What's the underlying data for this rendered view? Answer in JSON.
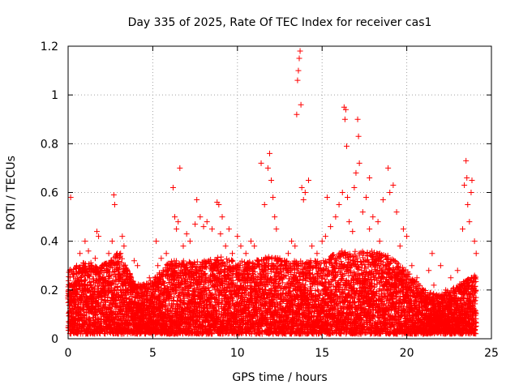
{
  "chart_data": {
    "type": "scatter",
    "title": "Day 335 of 2025, Rate Of TEC Index for receiver cas1",
    "xlabel": "GPS time / hours",
    "ylabel": "ROTI / TECUs",
    "xlim": [
      0,
      25
    ],
    "ylim": [
      0,
      1.2
    ],
    "xticks": [
      0,
      5,
      10,
      15,
      20,
      25
    ],
    "xtick_labels": [
      "0",
      "5",
      "10",
      "15",
      "20",
      "25"
    ],
    "yticks": [
      0,
      0.2,
      0.4,
      0.6,
      0.8,
      1,
      1.2
    ],
    "ytick_labels": [
      "0",
      "0.2",
      "0.4",
      "0.6",
      "0.8",
      "1",
      "1.2"
    ],
    "grid": true,
    "marker": "+",
    "color": "#ff0000",
    "series": [
      {
        "name": "ROTI",
        "points": [
          [
            0.1,
            0.28
          ],
          [
            0.15,
            0.58
          ],
          [
            0.3,
            0.22
          ],
          [
            0.5,
            0.3
          ],
          [
            0.7,
            0.35
          ],
          [
            0.9,
            0.26
          ],
          [
            1.0,
            0.4
          ],
          [
            1.2,
            0.36
          ],
          [
            1.4,
            0.3
          ],
          [
            1.6,
            0.33
          ],
          [
            1.7,
            0.44
          ],
          [
            1.8,
            0.42
          ],
          [
            2.0,
            0.3
          ],
          [
            2.2,
            0.22
          ],
          [
            2.4,
            0.35
          ],
          [
            2.6,
            0.4
          ],
          [
            2.7,
            0.59
          ],
          [
            2.75,
            0.55
          ],
          [
            2.9,
            0.33
          ],
          [
            3.1,
            0.35
          ],
          [
            3.2,
            0.42
          ],
          [
            3.3,
            0.38
          ],
          [
            3.5,
            0.2
          ],
          [
            3.7,
            0.25
          ],
          [
            3.9,
            0.32
          ],
          [
            4.1,
            0.3
          ],
          [
            4.3,
            0.2
          ],
          [
            4.5,
            0.22
          ],
          [
            4.8,
            0.25
          ],
          [
            5.0,
            0.2
          ],
          [
            5.3,
            0.3
          ],
          [
            5.5,
            0.33
          ],
          [
            5.8,
            0.35
          ],
          [
            6.0,
            0.3
          ],
          [
            6.2,
            0.62
          ],
          [
            6.3,
            0.5
          ],
          [
            6.4,
            0.45
          ],
          [
            6.5,
            0.48
          ],
          [
            6.6,
            0.7
          ],
          [
            6.8,
            0.38
          ],
          [
            7.0,
            0.43
          ],
          [
            7.2,
            0.4
          ],
          [
            7.5,
            0.47
          ],
          [
            7.6,
            0.57
          ],
          [
            7.8,
            0.5
          ],
          [
            8.0,
            0.46
          ],
          [
            8.2,
            0.48
          ],
          [
            8.5,
            0.45
          ],
          [
            8.8,
            0.56
          ],
          [
            8.9,
            0.55
          ],
          [
            9.1,
            0.5
          ],
          [
            9.3,
            0.38
          ],
          [
            9.5,
            0.45
          ],
          [
            9.7,
            0.35
          ],
          [
            10.0,
            0.42
          ],
          [
            10.2,
            0.38
          ],
          [
            10.5,
            0.35
          ],
          [
            10.8,
            0.4
          ],
          [
            11.0,
            0.38
          ],
          [
            11.2,
            0.32
          ],
          [
            11.4,
            0.72
          ],
          [
            11.6,
            0.55
          ],
          [
            11.8,
            0.7
          ],
          [
            11.9,
            0.76
          ],
          [
            12.0,
            0.65
          ],
          [
            12.1,
            0.58
          ],
          [
            12.2,
            0.5
          ],
          [
            12.5,
            0.33
          ],
          [
            12.8,
            0.3
          ],
          [
            13.0,
            0.35
          ],
          [
            13.2,
            0.4
          ],
          [
            13.4,
            0.38
          ],
          [
            13.5,
            0.92
          ],
          [
            13.55,
            1.06
          ],
          [
            13.6,
            1.1
          ],
          [
            13.65,
            1.15
          ],
          [
            13.7,
            1.18
          ],
          [
            13.75,
            0.96
          ],
          [
            13.8,
            0.62
          ],
          [
            14.0,
            0.6
          ],
          [
            14.2,
            0.65
          ],
          [
            14.4,
            0.38
          ],
          [
            14.7,
            0.35
          ],
          [
            15.0,
            0.4
          ],
          [
            15.2,
            0.42
          ],
          [
            15.3,
            0.58
          ],
          [
            15.5,
            0.46
          ],
          [
            15.8,
            0.5
          ],
          [
            16.0,
            0.55
          ],
          [
            16.2,
            0.6
          ],
          [
            16.3,
            0.95
          ],
          [
            16.35,
            0.9
          ],
          [
            16.4,
            0.94
          ],
          [
            16.45,
            0.79
          ],
          [
            16.5,
            0.58
          ],
          [
            16.6,
            0.48
          ],
          [
            16.9,
            0.62
          ],
          [
            17.0,
            0.68
          ],
          [
            17.1,
            0.9
          ],
          [
            17.15,
            0.83
          ],
          [
            17.2,
            0.72
          ],
          [
            17.4,
            0.52
          ],
          [
            17.6,
            0.58
          ],
          [
            17.8,
            0.66
          ],
          [
            18.0,
            0.5
          ],
          [
            18.3,
            0.48
          ],
          [
            18.6,
            0.57
          ],
          [
            18.9,
            0.7
          ],
          [
            19.0,
            0.6
          ],
          [
            19.2,
            0.63
          ],
          [
            19.4,
            0.52
          ],
          [
            19.6,
            0.38
          ],
          [
            19.8,
            0.45
          ],
          [
            20.0,
            0.42
          ],
          [
            20.3,
            0.3
          ],
          [
            20.6,
            0.25
          ],
          [
            21.0,
            0.2
          ],
          [
            21.3,
            0.28
          ],
          [
            21.6,
            0.22
          ],
          [
            22.0,
            0.3
          ],
          [
            22.3,
            0.2
          ],
          [
            22.6,
            0.25
          ],
          [
            23.0,
            0.28
          ],
          [
            23.3,
            0.45
          ],
          [
            23.4,
            0.63
          ],
          [
            23.5,
            0.73
          ],
          [
            23.55,
            0.66
          ],
          [
            23.6,
            0.55
          ],
          [
            23.7,
            0.48
          ],
          [
            23.8,
            0.6
          ],
          [
            23.85,
            0.65
          ],
          [
            24.0,
            0.4
          ],
          [
            24.1,
            0.35
          ],
          [
            16.8,
            0.44
          ],
          [
            18.4,
            0.4
          ],
          [
            21.5,
            0.35
          ],
          [
            12.3,
            0.45
          ],
          [
            13.9,
            0.57
          ],
          [
            17.8,
            0.45
          ],
          [
            5.2,
            0.4
          ],
          [
            9.0,
            0.43
          ]
        ],
        "band_upper_profile": [
          [
            0,
            0.26
          ],
          [
            1,
            0.3
          ],
          [
            2,
            0.28
          ],
          [
            3,
            0.34
          ],
          [
            4,
            0.2
          ],
          [
            5,
            0.22
          ],
          [
            6,
            0.3
          ],
          [
            7,
            0.3
          ],
          [
            8,
            0.3
          ],
          [
            9,
            0.32
          ],
          [
            10,
            0.3
          ],
          [
            11,
            0.3
          ],
          [
            12,
            0.32
          ],
          [
            13,
            0.3
          ],
          [
            14,
            0.3
          ],
          [
            15,
            0.3
          ],
          [
            16,
            0.34
          ],
          [
            17,
            0.34
          ],
          [
            18,
            0.34
          ],
          [
            19,
            0.32
          ],
          [
            20,
            0.26
          ],
          [
            21,
            0.18
          ],
          [
            22,
            0.16
          ],
          [
            23,
            0.2
          ],
          [
            24,
            0.24
          ]
        ]
      }
    ]
  }
}
